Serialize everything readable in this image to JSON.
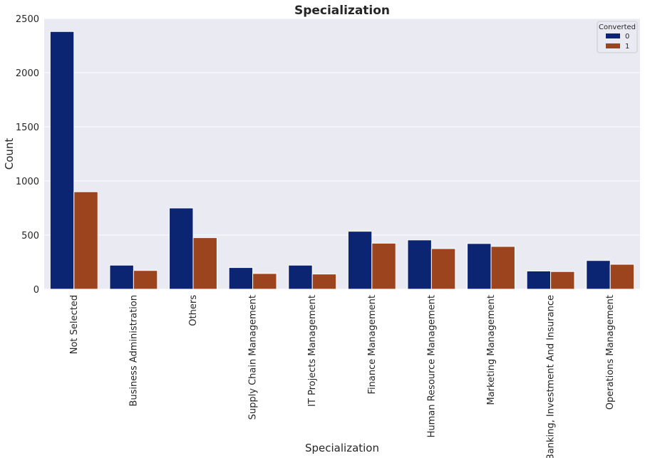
{
  "chart_data": {
    "type": "bar",
    "title": "Specialization",
    "xlabel": "Specialization",
    "ylabel": "Count",
    "ylim": [
      0,
      2500
    ],
    "yticks": [
      0,
      500,
      1000,
      1500,
      2000,
      2500
    ],
    "grid": true,
    "legend_position": "top-right",
    "legend_title": "Converted",
    "categories": [
      "Not Selected",
      "Business Administration",
      "Others",
      "Supply Chain Management",
      "IT Projects Management",
      "Finance Management",
      "Human Resource Management",
      "Marketing Management",
      "Banking, Investment And Insurance",
      "Operations Management"
    ],
    "series": [
      {
        "name": "0",
        "color": "#0c2573",
        "values": [
          2380,
          222,
          750,
          200,
          222,
          535,
          455,
          422,
          168,
          265
        ]
      },
      {
        "name": "1",
        "color": "#9b441d",
        "values": [
          900,
          173,
          476,
          145,
          140,
          425,
          375,
          395,
          163,
          230
        ]
      }
    ]
  }
}
